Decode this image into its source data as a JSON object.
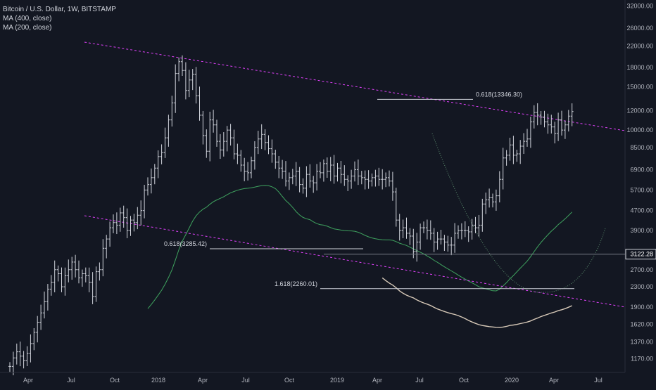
{
  "legend": {
    "symbol": "Bitcoin / U.S. Dollar, 1W, BITSTAMP",
    "ma400": "MA (400, close)",
    "ma200": "MA (200, close)"
  },
  "colors": {
    "background": "#131722",
    "candle": "#d1d4dc",
    "trendline": "#e040fb",
    "ma400": "#d7c9b8",
    "ma200": "#3fa35f",
    "level_line": "#d1d4dc",
    "projection": "#5c8d6e",
    "axis_text": "#b2b5be"
  },
  "chart_data": {
    "type": "candlestick",
    "scale": "log",
    "ylim": [
      1100,
      33000
    ],
    "y_ticks": [
      "32000.00",
      "26000.00",
      "22000.00",
      "18000.00",
      "15000.00",
      "12000.00",
      "10000.00",
      "8500.00",
      "6900.00",
      "5700.00",
      "4700.00",
      "3900.00",
      "3200.00",
      "2700.00",
      "2300.00",
      "1900.00",
      "1620.00",
      "1370.00",
      "1170.00"
    ],
    "x_ticks": [
      "Apr",
      "Jul",
      "Oct",
      "2018",
      "Apr",
      "Jul",
      "Oct",
      "2019",
      "Apr",
      "Jul",
      "Oct",
      "2020",
      "Apr",
      "Jul"
    ],
    "price_label": "3122.28",
    "annotations": [
      {
        "label": "0.618(13346.30)",
        "value": 13346.3
      },
      {
        "label": "0.618(3285.42)",
        "value": 3285.42
      },
      {
        "label": "1.618(2260.01)",
        "value": 2260.01
      }
    ],
    "closes": [
      1090,
      1180,
      1250,
      1200,
      1150,
      1230,
      1350,
      1500,
      1650,
      1800,
      2000,
      2250,
      2400,
      2700,
      2600,
      2300,
      2550,
      2700,
      2900,
      2700,
      2500,
      2600,
      2550,
      2400,
      2100,
      2650,
      2700,
      3300,
      3600,
      4000,
      4200,
      4100,
      4600,
      4400,
      3900,
      4300,
      4200,
      4500,
      4700,
      5700,
      6000,
      6400,
      7000,
      7800,
      8100,
      9300,
      11000,
      12900,
      17000,
      19000,
      17500,
      14500,
      16000,
      16900,
      13800,
      11500,
      9500,
      8200,
      11000,
      10500,
      9000,
      8300,
      9000,
      10000,
      9300,
      8000,
      7900,
      7200,
      6800,
      6700,
      7500,
      8500,
      9200,
      9600,
      8900,
      8400,
      8000,
      7400,
      7000,
      6800,
      6200,
      6400,
      6500,
      6800,
      6000,
      5800,
      6600,
      6200,
      6100,
      6800,
      6700,
      7300,
      6800,
      7200,
      6500,
      7000,
      6600,
      6300,
      6200,
      6500,
      6900,
      6500,
      6400,
      6300,
      6200,
      6400,
      6500,
      6300,
      6300,
      6400,
      6200,
      5600,
      4300,
      3900,
      4000,
      3800,
      3700,
      3200,
      3500,
      4000,
      4000,
      3900,
      3800,
      3500,
      3600,
      3600,
      3500,
      3400,
      3400,
      3800,
      3900,
      3900,
      3900,
      3850,
      4100,
      4000,
      4100,
      5000,
      5200,
      5300,
      5100,
      5400,
      6300,
      7700,
      7900,
      8700,
      7900,
      8000,
      8600,
      9000,
      9200,
      10800,
      11800,
      11500,
      11300,
      10800,
      10500,
      10300,
      9700,
      11000,
      10000,
      10500,
      11400,
      11900
    ]
  },
  "projection_note": ""
}
